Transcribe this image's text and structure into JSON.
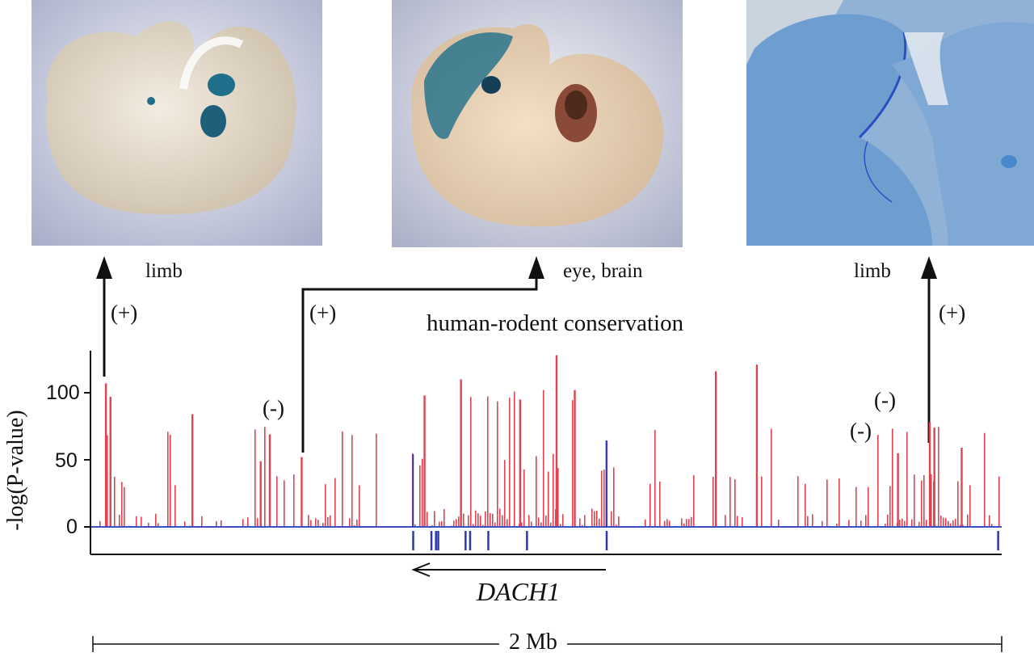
{
  "figure": {
    "photos": [
      {
        "name": "limb-embryo-photo-1",
        "label": "limb"
      },
      {
        "name": "eye-brain-embryo-photo",
        "label": "eye, brain"
      },
      {
        "name": "limb-closeup-photo",
        "label": "limb"
      }
    ],
    "signs": {
      "plus": "(+)",
      "minus": "(-)"
    },
    "track_title": "human-rodent conservation",
    "ylabel": "-log(P-value)",
    "yticks": [
      "100",
      "50",
      "0"
    ],
    "gene_name": "DACH1",
    "scale_label": "2 Mb",
    "colors": {
      "conservation": "#e0424f",
      "exon": "#2b3aa8",
      "baseline": "#3b4fc4",
      "arrow": "#111111",
      "stain": "#1f6f8b"
    }
  },
  "chart_data": {
    "type": "bar",
    "title": "human-rodent conservation",
    "xlabel": "",
    "ylabel": "-log(P-value)",
    "x_range_mb": [
      0,
      2
    ],
    "ylim": [
      0,
      125
    ],
    "yticks": [
      0,
      50,
      100
    ],
    "gene": "DACH1",
    "gene_strand": "minus",
    "gene_span_mb": [
      0.7,
      1.13
    ],
    "peaks": [
      {
        "x": 0.03,
        "y": 107
      },
      {
        "x": 0.04,
        "y": 97
      },
      {
        "x": 0.22,
        "y": 84
      },
      {
        "x": 0.39,
        "y": 69
      },
      {
        "x": 0.37,
        "y": 49
      },
      {
        "x": 0.46,
        "y": 52
      },
      {
        "x": 0.73,
        "y": 98
      },
      {
        "x": 0.81,
        "y": 110
      },
      {
        "x": 0.94,
        "y": 95
      },
      {
        "x": 1.02,
        "y": 128
      },
      {
        "x": 1.06,
        "y": 102
      },
      {
        "x": 1.13,
        "y": 64
      },
      {
        "x": 1.37,
        "y": 116
      },
      {
        "x": 1.46,
        "y": 121
      },
      {
        "x": 1.77,
        "y": 55
      },
      {
        "x": 1.84,
        "y": 78
      },
      {
        "x": 1.85,
        "y": 74
      },
      {
        "x": 1.91,
        "y": 59
      }
    ],
    "enhancer_tests": [
      {
        "x": 0.03,
        "result": "+",
        "expression": "limb"
      },
      {
        "x": 0.46,
        "result": "+",
        "expression": "eye, brain"
      },
      {
        "x": 0.41,
        "result": "-"
      },
      {
        "x": 1.76,
        "result": "-"
      },
      {
        "x": 1.84,
        "result": "-"
      },
      {
        "x": 1.91,
        "result": "+",
        "expression": "limb"
      }
    ]
  }
}
